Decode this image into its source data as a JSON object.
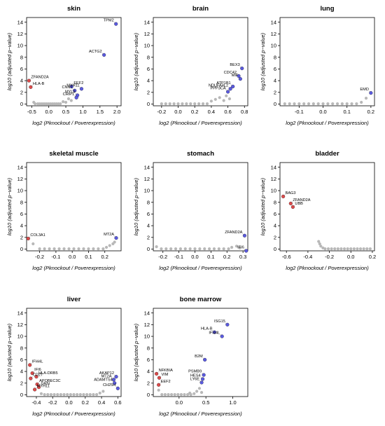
{
  "colors": {
    "gray": "#b8b8b8",
    "red": "#e34a4a",
    "blue": "#5a5ae6",
    "outline": "#000000"
  },
  "xlabel_text": "log2 (Pknockout / Poverexpression)",
  "ylabel_text": "log10 (adjusted p−value)",
  "chart_data": [
    {
      "type": "scatter",
      "title": "skin",
      "xlabel": "log2 (Pknockout / Poverexpression)",
      "ylabel": "log10 (adjusted p−value)",
      "xlim": [
        -0.65,
        2.12
      ],
      "ylim": [
        -0.3,
        14.8
      ],
      "xticks": [
        -0.5,
        0.0,
        0.5,
        1.0,
        1.5,
        2.0
      ],
      "xtick_labels": [
        "-0.5",
        "0.0",
        "0.5",
        "1.0",
        "1.5",
        "2.0"
      ],
      "yticks": [
        0,
        2,
        4,
        6,
        8,
        10,
        12,
        14
      ],
      "gray_points": [
        [
          -0.4,
          0.05
        ],
        [
          -0.32,
          0.05
        ],
        [
          -0.26,
          0.05
        ],
        [
          -0.2,
          0.05
        ],
        [
          -0.14,
          0.05
        ],
        [
          -0.08,
          0.05
        ],
        [
          -0.02,
          0.05
        ],
        [
          0.04,
          0.05
        ],
        [
          0.1,
          0.05
        ],
        [
          0.16,
          0.05
        ],
        [
          0.22,
          0.05
        ],
        [
          0.28,
          0.05
        ],
        [
          0.34,
          0.05
        ],
        [
          0.42,
          0.4
        ],
        [
          0.5,
          0.3
        ],
        [
          0.58,
          0.9
        ],
        [
          0.66,
          0.6
        ],
        [
          -0.44,
          0.3
        ]
      ],
      "labeled_points": [
        {
          "label": "TPM2",
          "x": 1.97,
          "y": 13.7,
          "color": "blue"
        },
        {
          "label": "ACTG2",
          "x": 1.62,
          "y": 8.4,
          "color": "blue"
        },
        {
          "label": "ZFAND2A",
          "x": -0.58,
          "y": 4.0,
          "color": "red"
        },
        {
          "label": "HLA-B",
          "x": -0.53,
          "y": 2.9,
          "color": "red"
        },
        {
          "label": "EEF2",
          "x": 0.67,
          "y": 3.0,
          "color": "blue"
        },
        {
          "label": "CNN1",
          "x": 0.76,
          "y": 2.3,
          "color": "blue"
        },
        {
          "label": "MYH11",
          "x": 0.96,
          "y": 2.6,
          "color": "blue"
        },
        {
          "label": "MYL9",
          "x": 0.84,
          "y": 1.5,
          "color": "blue"
        },
        {
          "label": "CRIP1",
          "x": 0.81,
          "y": 1.1,
          "color": "blue"
        }
      ]
    },
    {
      "type": "scatter",
      "title": "brain",
      "xlabel": "log2 (Pknockout / Poverexpression)",
      "ylabel": "log10 (adjusted p−value)",
      "xlim": [
        -0.3,
        0.84
      ],
      "ylim": [
        -0.3,
        14.8
      ],
      "xticks": [
        -0.2,
        0.0,
        0.2,
        0.4,
        0.6,
        0.8
      ],
      "xtick_labels": [
        "-0.2",
        "0.0",
        "0.2",
        "0.4",
        "0.6",
        "0.8"
      ],
      "yticks": [
        0,
        2,
        4,
        6,
        8,
        10,
        12,
        14
      ],
      "gray_points": [
        [
          -0.2,
          0.05
        ],
        [
          -0.15,
          0.05
        ],
        [
          -0.1,
          0.05
        ],
        [
          -0.05,
          0.05
        ],
        [
          0.0,
          0.05
        ],
        [
          0.05,
          0.05
        ],
        [
          0.1,
          0.05
        ],
        [
          0.15,
          0.05
        ],
        [
          0.2,
          0.05
        ],
        [
          0.25,
          0.05
        ],
        [
          0.3,
          0.05
        ],
        [
          0.35,
          0.05
        ],
        [
          0.4,
          0.5
        ],
        [
          0.45,
          0.8
        ],
        [
          0.5,
          1.1
        ],
        [
          0.55,
          0.6
        ],
        [
          0.58,
          1.4
        ],
        [
          0.62,
          0.9
        ]
      ],
      "labeled_points": [
        {
          "label": "BEX3",
          "x": 0.77,
          "y": 6.1,
          "color": "blue"
        },
        {
          "label": "CDC42",
          "x": 0.73,
          "y": 4.8,
          "color": "blue"
        },
        {
          "label": "MIF",
          "x": 0.75,
          "y": 4.3,
          "color": "blue"
        },
        {
          "label": "ATP1B1",
          "x": 0.66,
          "y": 3.0,
          "color": "blue"
        },
        {
          "label": "NDUFA4L2",
          "x": 0.63,
          "y": 2.6,
          "color": "blue"
        },
        {
          "label": "PPP3CA",
          "x": 0.6,
          "y": 2.1,
          "color": "blue"
        }
      ]
    },
    {
      "type": "scatter",
      "title": "lung",
      "xlabel": "log2 (Pknockout / Poverexpression)",
      "ylabel": "log10 (adjusted p−value)",
      "xlim": [
        -0.18,
        0.215
      ],
      "ylim": [
        -0.3,
        14.8
      ],
      "xticks": [
        -0.1,
        0.0,
        0.1,
        0.2
      ],
      "xtick_labels": [
        "-0.1",
        "0.0",
        "0.1",
        "0.2"
      ],
      "yticks": [
        0,
        2,
        4,
        6,
        8,
        10,
        12,
        14
      ],
      "gray_points": [
        [
          -0.16,
          0.05
        ],
        [
          -0.14,
          0.05
        ],
        [
          -0.12,
          0.05
        ],
        [
          -0.1,
          0.05
        ],
        [
          -0.08,
          0.05
        ],
        [
          -0.06,
          0.05
        ],
        [
          -0.04,
          0.05
        ],
        [
          -0.02,
          0.05
        ],
        [
          0.0,
          0.05
        ],
        [
          0.02,
          0.05
        ],
        [
          0.04,
          0.05
        ],
        [
          0.06,
          0.05
        ],
        [
          0.08,
          0.05
        ],
        [
          0.1,
          0.05
        ],
        [
          0.12,
          0.05
        ],
        [
          0.14,
          0.05
        ],
        [
          0.16,
          0.3
        ],
        [
          0.18,
          1.0
        ]
      ],
      "labeled_points": [
        {
          "label": "EMD",
          "x": 0.2,
          "y": 1.9,
          "color": "blue"
        }
      ]
    },
    {
      "type": "scatter",
      "title": "skeletal muscle",
      "xlabel": "log2 (Pknockout / Poverexpression)",
      "ylabel": "log10 (adjusted p−value)",
      "xlim": [
        -0.28,
        0.3
      ],
      "ylim": [
        -0.3,
        14.8
      ],
      "xticks": [
        -0.2,
        -0.1,
        0.0,
        0.1,
        0.2
      ],
      "xtick_labels": [
        "-0.2",
        "-0.1",
        "0.0",
        "0.1",
        "0.2"
      ],
      "yticks": [
        0,
        2,
        4,
        6,
        8,
        10,
        12,
        14
      ],
      "gray_points": [
        [
          -0.24,
          0.9
        ],
        [
          -0.2,
          0.05
        ],
        [
          -0.17,
          0.05
        ],
        [
          -0.14,
          0.05
        ],
        [
          -0.11,
          0.05
        ],
        [
          -0.08,
          0.05
        ],
        [
          -0.05,
          0.05
        ],
        [
          -0.02,
          0.05
        ],
        [
          0.01,
          0.05
        ],
        [
          0.04,
          0.05
        ],
        [
          0.07,
          0.05
        ],
        [
          0.1,
          0.05
        ],
        [
          0.13,
          0.05
        ],
        [
          0.16,
          0.05
        ],
        [
          0.19,
          0.05
        ],
        [
          0.21,
          0.3
        ],
        [
          0.23,
          0.6
        ],
        [
          0.25,
          0.9
        ],
        [
          0.26,
          1.2
        ]
      ],
      "labeled_points": [
        {
          "label": "COL3A1",
          "x": -0.27,
          "y": 1.8,
          "color": "red"
        },
        {
          "label": "MT2A",
          "x": 0.27,
          "y": 1.9,
          "color": "blue"
        }
      ]
    },
    {
      "type": "scatter",
      "title": "stomach",
      "xlabel": "log2 (Pknockout / Poverexpression)",
      "ylabel": "log10 (adjusted p−value)",
      "xlim": [
        -0.26,
        0.33
      ],
      "ylim": [
        -0.3,
        14.8
      ],
      "xticks": [
        -0.2,
        -0.1,
        0.0,
        0.1,
        0.2,
        0.3
      ],
      "xtick_labels": [
        "-0.2",
        "-0.1",
        "0.0",
        "0.1",
        "0.2",
        "0.3"
      ],
      "yticks": [
        0,
        2,
        4,
        6,
        8,
        10,
        12,
        14
      ],
      "gray_points": [
        [
          -0.24,
          0.4
        ],
        [
          -0.21,
          0.05
        ],
        [
          -0.18,
          0.05
        ],
        [
          -0.15,
          0.05
        ],
        [
          -0.12,
          0.05
        ],
        [
          -0.09,
          0.05
        ],
        [
          -0.06,
          0.05
        ],
        [
          -0.03,
          0.05
        ],
        [
          0.0,
          0.05
        ],
        [
          0.03,
          0.05
        ],
        [
          0.06,
          0.05
        ],
        [
          0.09,
          0.05
        ],
        [
          0.12,
          0.05
        ],
        [
          0.15,
          0.05
        ],
        [
          0.18,
          0.05
        ],
        [
          0.21,
          0.05
        ],
        [
          0.23,
          0.3
        ],
        [
          0.26,
          0.5
        ],
        [
          0.28,
          0.2
        ]
      ],
      "labeled_points": [
        {
          "label": "ZFAND2A",
          "x": 0.31,
          "y": 2.3,
          "color": "blue"
        },
        {
          "label": "IFI6",
          "x": 0.32,
          "y": -0.3,
          "color": "blue"
        }
      ]
    },
    {
      "type": "scatter",
      "title": "bladder",
      "xlabel": "log2 (Pknockout / Poverexpression)",
      "ylabel": "log10 (adjusted p−value)",
      "xlim": [
        -0.66,
        0.22
      ],
      "ylim": [
        -0.3,
        14.8
      ],
      "xticks": [
        -0.6,
        -0.4,
        -0.2,
        0.0,
        0.2
      ],
      "xtick_labels": [
        "-0.6",
        "-0.4",
        "-0.2",
        "0.0",
        "0.2"
      ],
      "yticks": [
        0,
        2,
        4,
        6,
        8,
        10,
        12,
        14
      ],
      "gray_points": [
        [
          -0.3,
          1.3
        ],
        [
          -0.29,
          0.9
        ],
        [
          -0.28,
          0.5
        ],
        [
          -0.26,
          0.2
        ],
        [
          -0.24,
          0.05
        ],
        [
          -0.21,
          0.05
        ],
        [
          -0.18,
          0.05
        ],
        [
          -0.15,
          0.05
        ],
        [
          -0.12,
          0.05
        ],
        [
          -0.09,
          0.05
        ],
        [
          -0.06,
          0.05
        ],
        [
          -0.03,
          0.05
        ],
        [
          0.0,
          0.05
        ],
        [
          0.03,
          0.05
        ],
        [
          0.06,
          0.05
        ],
        [
          0.09,
          0.05
        ],
        [
          0.12,
          0.05
        ],
        [
          0.15,
          0.05
        ],
        [
          0.18,
          0.05
        ]
      ],
      "labeled_points": [
        {
          "label": "BAG3",
          "x": -0.63,
          "y": 9.0,
          "color": "red"
        },
        {
          "label": "ZFAND2A",
          "x": -0.56,
          "y": 7.8,
          "color": "red"
        },
        {
          "label": "UBB",
          "x": -0.54,
          "y": 7.2,
          "color": "red"
        }
      ]
    },
    {
      "type": "scatter",
      "title": "liver",
      "xlabel": "log2 (Pknockout / Poverexpression)",
      "ylabel": "log10 (adjusted p−value)",
      "xlim": [
        -0.52,
        0.64
      ],
      "ylim": [
        -0.3,
        14.8
      ],
      "xticks": [
        -0.4,
        -0.2,
        0.0,
        0.2,
        0.4,
        0.6
      ],
      "xtick_labels": [
        "-0.4",
        "-0.2",
        "0.0",
        "0.2",
        "0.4",
        "0.6"
      ],
      "yticks": [
        0,
        2,
        4,
        6,
        8,
        10,
        12,
        14
      ],
      "gray_points": [
        [
          -0.34,
          0.2
        ],
        [
          -0.3,
          0.05
        ],
        [
          -0.26,
          0.05
        ],
        [
          -0.22,
          0.05
        ],
        [
          -0.18,
          0.05
        ],
        [
          -0.14,
          0.05
        ],
        [
          -0.1,
          0.05
        ],
        [
          -0.06,
          0.05
        ],
        [
          -0.02,
          0.05
        ],
        [
          0.02,
          0.05
        ],
        [
          0.06,
          0.05
        ],
        [
          0.1,
          0.05
        ],
        [
          0.14,
          0.05
        ],
        [
          0.18,
          0.05
        ],
        [
          0.22,
          0.05
        ],
        [
          0.26,
          0.05
        ],
        [
          0.3,
          0.05
        ],
        [
          0.34,
          0.05
        ],
        [
          0.38,
          0.3
        ],
        [
          0.42,
          0.6
        ]
      ],
      "labeled_points": [
        {
          "label": "IFI44L",
          "x": -0.48,
          "y": 5.1,
          "color": "red"
        },
        {
          "label": "IFI6",
          "x": -0.45,
          "y": 3.7,
          "color": "red"
        },
        {
          "label": "HLA-DRB5",
          "x": -0.4,
          "y": 3.1,
          "color": "red"
        },
        {
          "label": "CD27",
          "x": -0.47,
          "y": 2.8,
          "color": "red"
        },
        {
          "label": "APOBEC3C",
          "x": -0.39,
          "y": 1.8,
          "color": "red"
        },
        {
          "label": "GRN",
          "x": -0.37,
          "y": 1.3,
          "color": "red"
        },
        {
          "label": "MYH11",
          "x": -0.42,
          "y": 0.9,
          "color": "red"
        },
        {
          "label": "AKAP12",
          "x": 0.58,
          "y": 3.1,
          "color": "blue"
        },
        {
          "label": "MT2A",
          "x": 0.55,
          "y": 2.6,
          "color": "blue"
        },
        {
          "label": "ADAMTS4",
          "x": 0.56,
          "y": 2.0,
          "color": "blue"
        },
        {
          "label": "CH25H",
          "x": 0.6,
          "y": 1.1,
          "color": "blue"
        }
      ]
    },
    {
      "type": "scatter",
      "title": "bone marrow",
      "xlabel": "log2 (Pknockout / Poverexpression)",
      "ylabel": "log10 (adjusted p−value)",
      "xlim": [
        -0.48,
        1.28
      ],
      "ylim": [
        -0.3,
        14.8
      ],
      "xticks": [
        0.0,
        0.5,
        1.0
      ],
      "xtick_labels": [
        "0.0",
        "0.5",
        "1.0"
      ],
      "yticks": [
        0,
        2,
        4,
        6,
        8,
        10,
        12,
        14
      ],
      "gray_points": [
        [
          -0.38,
          0.8
        ],
        [
          -0.32,
          0.05
        ],
        [
          -0.26,
          0.05
        ],
        [
          -0.2,
          0.05
        ],
        [
          -0.14,
          0.05
        ],
        [
          -0.08,
          0.05
        ],
        [
          -0.02,
          0.05
        ],
        [
          0.04,
          0.05
        ],
        [
          0.1,
          0.05
        ],
        [
          0.16,
          0.05
        ],
        [
          0.22,
          0.05
        ],
        [
          0.28,
          0.2
        ],
        [
          0.33,
          0.6
        ],
        [
          0.38,
          1.1
        ],
        [
          0.42,
          0.4
        ],
        [
          0.2,
          0.3
        ]
      ],
      "labeled_points": [
        {
          "label": "ISG15",
          "x": 0.9,
          "y": 12.0,
          "color": "blue"
        },
        {
          "label": "HLA-B",
          "x": 0.66,
          "y": 10.7,
          "color": "blue"
        },
        {
          "label": "IFI44L",
          "x": 0.8,
          "y": 10.0,
          "color": "blue"
        },
        {
          "label": "B2M",
          "x": 0.48,
          "y": 6.0,
          "color": "blue"
        },
        {
          "label": "NFKBIA",
          "x": -0.42,
          "y": 3.6,
          "color": "red"
        },
        {
          "label": "VIM",
          "x": -0.37,
          "y": 2.9,
          "color": "red"
        },
        {
          "label": "PSMB9",
          "x": 0.46,
          "y": 3.4,
          "color": "blue"
        },
        {
          "label": "HES4",
          "x": 0.44,
          "y": 2.7,
          "color": "blue"
        },
        {
          "label": "LY6E",
          "x": 0.42,
          "y": 2.1,
          "color": "blue"
        },
        {
          "label": "EEF2",
          "x": -0.38,
          "y": 1.7,
          "color": "red"
        }
      ]
    }
  ]
}
